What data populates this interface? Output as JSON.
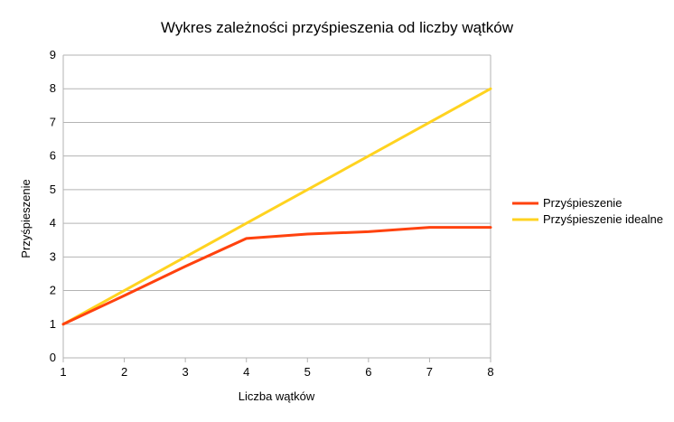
{
  "chart_data": {
    "type": "line",
    "title": "Wykres zależności przyśpieszenia od liczby wątków",
    "xlabel": "Liczba wątków",
    "ylabel": "Przyśpieszenie",
    "x": [
      1,
      2,
      3,
      4,
      5,
      6,
      7,
      8
    ],
    "xlim": [
      1,
      8
    ],
    "ylim": [
      0,
      9
    ],
    "x_ticks": [
      "1",
      "2",
      "3",
      "4",
      "5",
      "6",
      "7",
      "8"
    ],
    "y_ticks": [
      "0",
      "1",
      "2",
      "3",
      "4",
      "5",
      "6",
      "7",
      "8",
      "9"
    ],
    "grid": "horizontal",
    "legend_position": "right",
    "series": [
      {
        "name": "Przyśpieszenie",
        "color": "#ff420e",
        "values": [
          1,
          1.85,
          2.72,
          3.55,
          3.68,
          3.75,
          3.88,
          3.88
        ]
      },
      {
        "name": "Przyśpieszenie idealne",
        "color": "#ffd320",
        "values": [
          1,
          2,
          3,
          4,
          5,
          6,
          7,
          8
        ]
      }
    ]
  }
}
